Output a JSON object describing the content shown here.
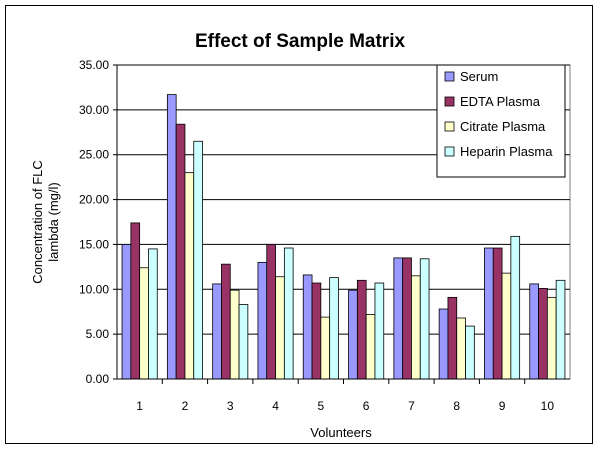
{
  "chart_data": {
    "type": "bar",
    "title": "Effect of Sample Matrix",
    "xlabel": "Volunteers",
    "ylabel": [
      "Concentration of FLC",
      "lambda (mg/l)"
    ],
    "ylim": [
      0,
      35
    ],
    "yticks": [
      "0.00",
      "5.00",
      "10.00",
      "15.00",
      "20.00",
      "25.00",
      "30.00",
      "35.00"
    ],
    "grid": true,
    "legend_position": "top-right",
    "categories": [
      "1",
      "2",
      "3",
      "4",
      "5",
      "6",
      "7",
      "8",
      "9",
      "10"
    ],
    "series": [
      {
        "name": "Serum",
        "color": "#9999ff",
        "values": [
          15.0,
          31.7,
          10.6,
          13.0,
          11.6,
          9.9,
          13.5,
          7.8,
          14.6,
          10.6
        ]
      },
      {
        "name": "EDTA Plasma",
        "color": "#993366",
        "values": [
          17.4,
          28.4,
          12.8,
          15.0,
          10.7,
          11.0,
          13.5,
          9.1,
          14.6,
          10.1
        ]
      },
      {
        "name": "Citrate Plasma",
        "color": "#ffffcc",
        "values": [
          12.4,
          23.0,
          9.9,
          11.4,
          6.9,
          7.2,
          11.5,
          6.8,
          11.8,
          9.1
        ]
      },
      {
        "name": "Heparin Plasma",
        "color": "#ccffff",
        "values": [
          14.5,
          26.5,
          8.3,
          14.6,
          11.3,
          10.7,
          13.4,
          5.9,
          15.9,
          11.0
        ]
      }
    ]
  }
}
